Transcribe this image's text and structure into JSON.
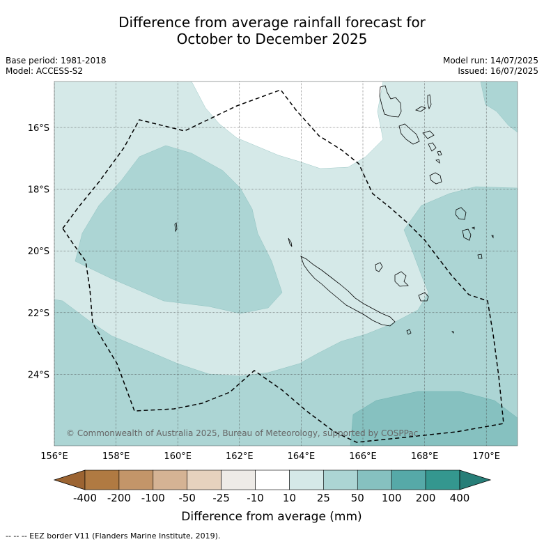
{
  "header": {
    "title_line1": "Difference from average rainfall forecast for",
    "title_line2": "October to December 2025",
    "base_period": "Base period: 1981-2018",
    "model": "Model: ACCESS-S2",
    "model_run": "Model run: 14/07/2025",
    "issued": "Issued: 16/07/2025"
  },
  "map": {
    "lon_ticks": [
      "156°E",
      "158°E",
      "160°E",
      "162°E",
      "164°E",
      "166°E",
      "168°E",
      "170°E"
    ],
    "lat_ticks": [
      "16°S",
      "18°S",
      "20°S",
      "22°S",
      "24°S"
    ],
    "copyright": "© Commonwealth of Australia 2025, Bureau of Meteorology, supported by COSPPac",
    "colors": {
      "c10_25": "#d5e9e8",
      "c25_50": "#acd5d4",
      "c50_100": "#86c1c0"
    }
  },
  "colorbar": {
    "labels": [
      "-400",
      "-200",
      "-100",
      "-50",
      "-25",
      "-10",
      "10",
      "25",
      "50",
      "100",
      "200",
      "400"
    ],
    "colors": [
      "#9c6432",
      "#b07a42",
      "#c39569",
      "#d5b394",
      "#e6d2be",
      "#eeebe7",
      "#ffffff",
      "#d5e9e8",
      "#acd5d4",
      "#86c1c0",
      "#56a9a8",
      "#34978f",
      "#277e78"
    ],
    "label": "Difference from average (mm)"
  },
  "footnote": "--  --  -- EEZ border V11 (Flanders Marine Institute, 2019)."
}
